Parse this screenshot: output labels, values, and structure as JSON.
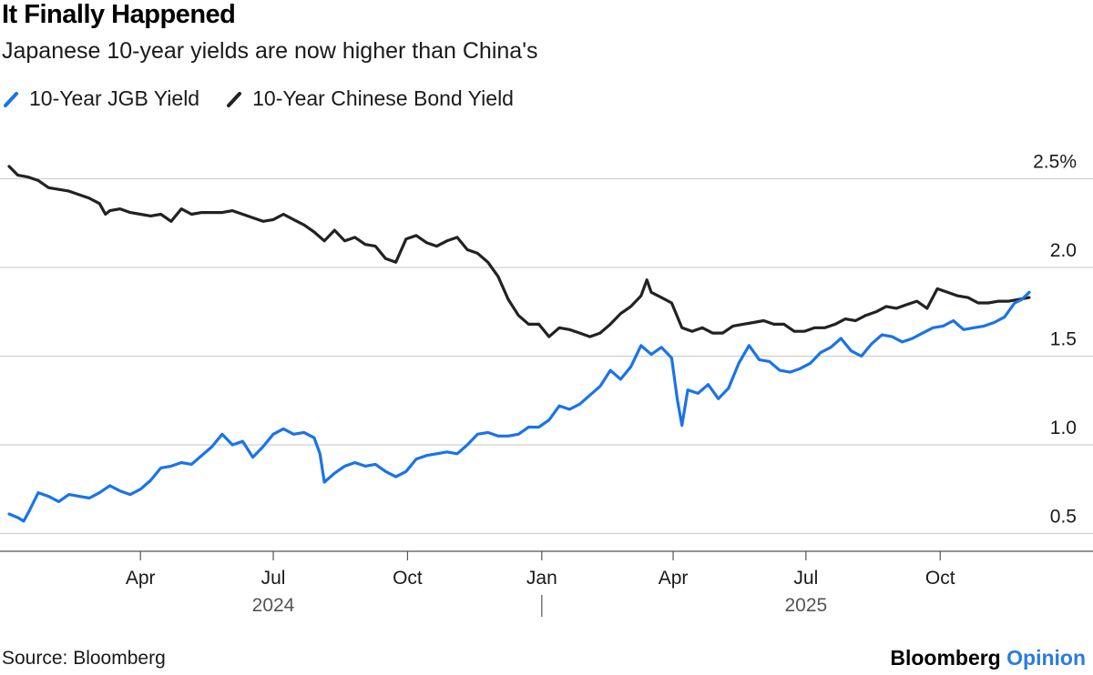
{
  "chart_data": {
    "type": "line",
    "title": "It Finally Happened",
    "subtitle": "Japanese 10-year yields are now higher than China's",
    "x_range": [
      "2024-01-02",
      "2025-12-01"
    ],
    "y_range": [
      0.4,
      2.6
    ],
    "y_ticks": [
      {
        "value": 2.5,
        "label": "2.5%"
      },
      {
        "value": 2.0,
        "label": "2.0"
      },
      {
        "value": 1.5,
        "label": "1.5"
      },
      {
        "value": 1.0,
        "label": "1.0"
      },
      {
        "value": 0.5,
        "label": "0.5"
      }
    ],
    "x_ticks": [
      {
        "date": "2024-04-01",
        "label": "Apr"
      },
      {
        "date": "2024-07-01",
        "label": "Jul"
      },
      {
        "date": "2024-10-01",
        "label": "Oct"
      },
      {
        "date": "2025-01-01",
        "label": "Jan"
      },
      {
        "date": "2025-04-01",
        "label": "Apr"
      },
      {
        "date": "2025-07-01",
        "label": "Jul"
      },
      {
        "date": "2025-10-01",
        "label": "Oct"
      }
    ],
    "year_labels": [
      {
        "date": "2024-07-01",
        "label": "2024"
      },
      {
        "date": "2025-07-01",
        "label": "2025"
      }
    ],
    "year_divider": "2025-01-01",
    "grid": true,
    "legend_position": "top-left",
    "series": [
      {
        "name": "10-Year JGB Yield",
        "color": "#1a73e8",
        "points": [
          [
            "2024-01-02",
            0.61
          ],
          [
            "2024-01-08",
            0.59
          ],
          [
            "2024-01-12",
            0.57
          ],
          [
            "2024-01-16",
            0.63
          ],
          [
            "2024-01-22",
            0.73
          ],
          [
            "2024-01-29",
            0.71
          ],
          [
            "2024-02-05",
            0.68
          ],
          [
            "2024-02-12",
            0.72
          ],
          [
            "2024-02-19",
            0.71
          ],
          [
            "2024-02-26",
            0.7
          ],
          [
            "2024-03-04",
            0.73
          ],
          [
            "2024-03-11",
            0.77
          ],
          [
            "2024-03-18",
            0.74
          ],
          [
            "2024-03-25",
            0.72
          ],
          [
            "2024-04-01",
            0.75
          ],
          [
            "2024-04-08",
            0.8
          ],
          [
            "2024-04-15",
            0.87
          ],
          [
            "2024-04-22",
            0.88
          ],
          [
            "2024-04-29",
            0.9
          ],
          [
            "2024-05-06",
            0.89
          ],
          [
            "2024-05-13",
            0.94
          ],
          [
            "2024-05-20",
            0.99
          ],
          [
            "2024-05-27",
            1.06
          ],
          [
            "2024-06-03",
            1.0
          ],
          [
            "2024-06-10",
            1.02
          ],
          [
            "2024-06-17",
            0.93
          ],
          [
            "2024-06-24",
            0.99
          ],
          [
            "2024-07-01",
            1.06
          ],
          [
            "2024-07-08",
            1.09
          ],
          [
            "2024-07-15",
            1.06
          ],
          [
            "2024-07-22",
            1.07
          ],
          [
            "2024-07-29",
            1.04
          ],
          [
            "2024-08-02",
            0.95
          ],
          [
            "2024-08-05",
            0.79
          ],
          [
            "2024-08-12",
            0.84
          ],
          [
            "2024-08-19",
            0.88
          ],
          [
            "2024-08-26",
            0.9
          ],
          [
            "2024-09-02",
            0.88
          ],
          [
            "2024-09-09",
            0.89
          ],
          [
            "2024-09-16",
            0.85
          ],
          [
            "2024-09-23",
            0.82
          ],
          [
            "2024-09-30",
            0.85
          ],
          [
            "2024-10-07",
            0.92
          ],
          [
            "2024-10-14",
            0.94
          ],
          [
            "2024-10-21",
            0.95
          ],
          [
            "2024-10-28",
            0.96
          ],
          [
            "2024-11-04",
            0.95
          ],
          [
            "2024-11-11",
            1.0
          ],
          [
            "2024-11-18",
            1.06
          ],
          [
            "2024-11-25",
            1.07
          ],
          [
            "2024-12-02",
            1.05
          ],
          [
            "2024-12-09",
            1.05
          ],
          [
            "2024-12-16",
            1.06
          ],
          [
            "2024-12-23",
            1.1
          ],
          [
            "2024-12-30",
            1.1
          ],
          [
            "2025-01-06",
            1.14
          ],
          [
            "2025-01-13",
            1.22
          ],
          [
            "2025-01-20",
            1.2
          ],
          [
            "2025-01-27",
            1.23
          ],
          [
            "2025-02-03",
            1.28
          ],
          [
            "2025-02-10",
            1.33
          ],
          [
            "2025-02-17",
            1.42
          ],
          [
            "2025-02-24",
            1.37
          ],
          [
            "2025-03-03",
            1.44
          ],
          [
            "2025-03-10",
            1.56
          ],
          [
            "2025-03-17",
            1.51
          ],
          [
            "2025-03-24",
            1.55
          ],
          [
            "2025-03-31",
            1.49
          ],
          [
            "2025-04-04",
            1.25
          ],
          [
            "2025-04-07",
            1.11
          ],
          [
            "2025-04-11",
            1.31
          ],
          [
            "2025-04-18",
            1.29
          ],
          [
            "2025-04-25",
            1.34
          ],
          [
            "2025-05-02",
            1.26
          ],
          [
            "2025-05-09",
            1.32
          ],
          [
            "2025-05-16",
            1.46
          ],
          [
            "2025-05-23",
            1.56
          ],
          [
            "2025-05-30",
            1.48
          ],
          [
            "2025-06-06",
            1.47
          ],
          [
            "2025-06-13",
            1.42
          ],
          [
            "2025-06-20",
            1.41
          ],
          [
            "2025-06-27",
            1.43
          ],
          [
            "2025-07-04",
            1.46
          ],
          [
            "2025-07-11",
            1.52
          ],
          [
            "2025-07-18",
            1.55
          ],
          [
            "2025-07-25",
            1.6
          ],
          [
            "2025-08-01",
            1.53
          ],
          [
            "2025-08-08",
            1.5
          ],
          [
            "2025-08-15",
            1.57
          ],
          [
            "2025-08-22",
            1.62
          ],
          [
            "2025-08-29",
            1.61
          ],
          [
            "2025-09-05",
            1.58
          ],
          [
            "2025-09-12",
            1.6
          ],
          [
            "2025-09-19",
            1.63
          ],
          [
            "2025-09-26",
            1.66
          ],
          [
            "2025-10-03",
            1.67
          ],
          [
            "2025-10-10",
            1.7
          ],
          [
            "2025-10-17",
            1.65
          ],
          [
            "2025-10-24",
            1.66
          ],
          [
            "2025-10-31",
            1.67
          ],
          [
            "2025-11-07",
            1.69
          ],
          [
            "2025-11-14",
            1.72
          ],
          [
            "2025-11-21",
            1.8
          ],
          [
            "2025-11-26",
            1.82
          ],
          [
            "2025-12-01",
            1.86
          ]
        ]
      },
      {
        "name": "10-Year Chinese Bond Yield",
        "color": "#222222",
        "points": [
          [
            "2024-01-02",
            2.57
          ],
          [
            "2024-01-08",
            2.52
          ],
          [
            "2024-01-15",
            2.51
          ],
          [
            "2024-01-22",
            2.49
          ],
          [
            "2024-01-29",
            2.45
          ],
          [
            "2024-02-05",
            2.44
          ],
          [
            "2024-02-12",
            2.43
          ],
          [
            "2024-02-19",
            2.41
          ],
          [
            "2024-02-26",
            2.39
          ],
          [
            "2024-03-04",
            2.36
          ],
          [
            "2024-03-08",
            2.3
          ],
          [
            "2024-03-11",
            2.32
          ],
          [
            "2024-03-18",
            2.33
          ],
          [
            "2024-03-25",
            2.31
          ],
          [
            "2024-04-01",
            2.3
          ],
          [
            "2024-04-08",
            2.29
          ],
          [
            "2024-04-15",
            2.3
          ],
          [
            "2024-04-22",
            2.26
          ],
          [
            "2024-04-29",
            2.33
          ],
          [
            "2024-05-06",
            2.3
          ],
          [
            "2024-05-13",
            2.31
          ],
          [
            "2024-05-20",
            2.31
          ],
          [
            "2024-05-27",
            2.31
          ],
          [
            "2024-06-03",
            2.32
          ],
          [
            "2024-06-10",
            2.3
          ],
          [
            "2024-06-17",
            2.28
          ],
          [
            "2024-06-24",
            2.26
          ],
          [
            "2024-07-01",
            2.27
          ],
          [
            "2024-07-08",
            2.3
          ],
          [
            "2024-07-15",
            2.27
          ],
          [
            "2024-07-22",
            2.24
          ],
          [
            "2024-07-29",
            2.2
          ],
          [
            "2024-08-05",
            2.15
          ],
          [
            "2024-08-12",
            2.21
          ],
          [
            "2024-08-19",
            2.15
          ],
          [
            "2024-08-26",
            2.17
          ],
          [
            "2024-09-02",
            2.13
          ],
          [
            "2024-09-09",
            2.12
          ],
          [
            "2024-09-16",
            2.05
          ],
          [
            "2024-09-23",
            2.03
          ],
          [
            "2024-09-30",
            2.16
          ],
          [
            "2024-10-07",
            2.18
          ],
          [
            "2024-10-14",
            2.14
          ],
          [
            "2024-10-21",
            2.12
          ],
          [
            "2024-10-28",
            2.15
          ],
          [
            "2024-11-04",
            2.17
          ],
          [
            "2024-11-11",
            2.1
          ],
          [
            "2024-11-18",
            2.08
          ],
          [
            "2024-11-25",
            2.03
          ],
          [
            "2024-12-02",
            1.95
          ],
          [
            "2024-12-09",
            1.82
          ],
          [
            "2024-12-16",
            1.73
          ],
          [
            "2024-12-23",
            1.68
          ],
          [
            "2024-12-30",
            1.68
          ],
          [
            "2025-01-06",
            1.61
          ],
          [
            "2025-01-13",
            1.66
          ],
          [
            "2025-01-20",
            1.65
          ],
          [
            "2025-01-27",
            1.63
          ],
          [
            "2025-02-03",
            1.61
          ],
          [
            "2025-02-10",
            1.63
          ],
          [
            "2025-02-17",
            1.68
          ],
          [
            "2025-02-24",
            1.74
          ],
          [
            "2025-03-03",
            1.78
          ],
          [
            "2025-03-10",
            1.84
          ],
          [
            "2025-03-14",
            1.93
          ],
          [
            "2025-03-17",
            1.86
          ],
          [
            "2025-03-24",
            1.83
          ],
          [
            "2025-03-31",
            1.8
          ],
          [
            "2025-04-07",
            1.66
          ],
          [
            "2025-04-14",
            1.64
          ],
          [
            "2025-04-21",
            1.66
          ],
          [
            "2025-04-28",
            1.63
          ],
          [
            "2025-05-05",
            1.63
          ],
          [
            "2025-05-12",
            1.67
          ],
          [
            "2025-05-19",
            1.68
          ],
          [
            "2025-05-26",
            1.69
          ],
          [
            "2025-06-02",
            1.7
          ],
          [
            "2025-06-09",
            1.68
          ],
          [
            "2025-06-16",
            1.68
          ],
          [
            "2025-06-23",
            1.64
          ],
          [
            "2025-06-30",
            1.64
          ],
          [
            "2025-07-07",
            1.66
          ],
          [
            "2025-07-14",
            1.66
          ],
          [
            "2025-07-21",
            1.68
          ],
          [
            "2025-07-28",
            1.71
          ],
          [
            "2025-08-04",
            1.7
          ],
          [
            "2025-08-11",
            1.73
          ],
          [
            "2025-08-18",
            1.75
          ],
          [
            "2025-08-25",
            1.78
          ],
          [
            "2025-09-01",
            1.77
          ],
          [
            "2025-09-08",
            1.79
          ],
          [
            "2025-09-15",
            1.81
          ],
          [
            "2025-09-22",
            1.77
          ],
          [
            "2025-09-29",
            1.88
          ],
          [
            "2025-10-06",
            1.86
          ],
          [
            "2025-10-13",
            1.84
          ],
          [
            "2025-10-20",
            1.83
          ],
          [
            "2025-10-27",
            1.8
          ],
          [
            "2025-11-03",
            1.8
          ],
          [
            "2025-11-10",
            1.81
          ],
          [
            "2025-11-17",
            1.81
          ],
          [
            "2025-11-24",
            1.82
          ],
          [
            "2025-12-01",
            1.83
          ]
        ]
      }
    ]
  },
  "footer": {
    "source": "Source: Bloomberg",
    "brand_main": "Bloomberg",
    "brand_accent": "Opinion"
  }
}
